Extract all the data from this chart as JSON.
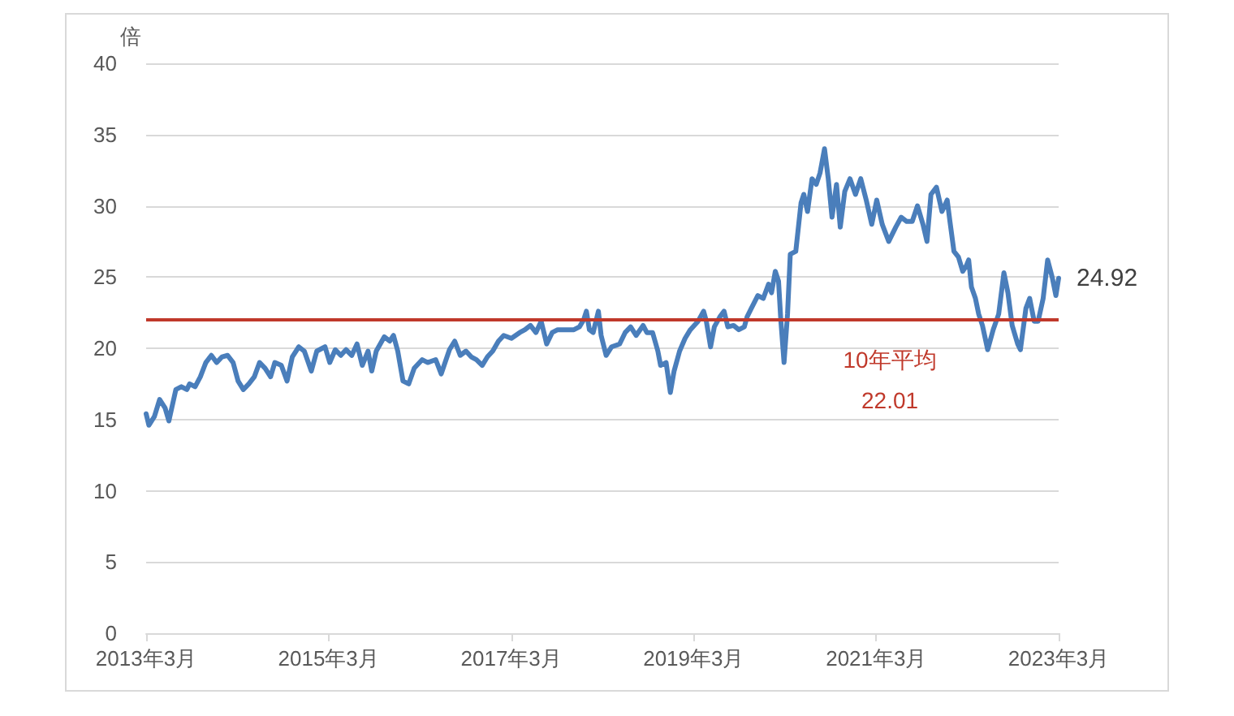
{
  "chart_data": {
    "type": "line",
    "ylabel": "倍",
    "x": [
      "2013-03-01",
      "2013-03-12",
      "2013-04-03",
      "2013-04-24",
      "2013-05-16",
      "2013-05-31",
      "2013-06-28",
      "2013-07-20",
      "2013-08-11",
      "2013-08-22",
      "2013-09-13",
      "2013-10-04",
      "2013-10-26",
      "2013-11-17",
      "2013-12-08",
      "2013-12-30",
      "2014-01-21",
      "2014-02-12",
      "2014-03-04",
      "2014-03-25",
      "2014-04-16",
      "2014-05-08",
      "2014-05-29",
      "2014-06-20",
      "2014-07-12",
      "2014-07-29",
      "2014-08-24",
      "2014-09-16",
      "2014-10-07",
      "2014-11-02",
      "2014-11-24",
      "2014-12-22",
      "2015-01-13",
      "2015-02-15",
      "2015-03-06",
      "2015-03-28",
      "2015-04-19",
      "2015-05-10",
      "2015-06-02",
      "2015-06-23",
      "2015-07-14",
      "2015-08-06",
      "2015-08-21",
      "2015-09-08",
      "2015-10-10",
      "2015-11-01",
      "2015-11-16",
      "2015-12-03",
      "2015-12-24",
      "2016-01-16",
      "2016-02-07",
      "2016-03-10",
      "2016-04-01",
      "2016-05-03",
      "2016-05-25",
      "2016-06-27",
      "2016-07-18",
      "2016-08-09",
      "2016-09-01",
      "2016-09-22",
      "2016-10-13",
      "2016-11-05",
      "2016-11-26",
      "2016-12-17",
      "2017-01-09",
      "2017-01-30",
      "2017-03-02",
      "2017-04-04",
      "2017-04-25",
      "2017-05-17",
      "2017-06-08",
      "2017-06-29",
      "2017-07-21",
      "2017-08-12",
      "2017-09-03",
      "2017-10-05",
      "2017-11-07",
      "2017-11-29",
      "2017-12-16",
      "2017-12-27",
      "2018-01-08",
      "2018-01-23",
      "2018-02-13",
      "2018-02-24",
      "2018-03-16",
      "2018-04-07",
      "2018-05-09",
      "2018-05-31",
      "2018-06-22",
      "2018-07-14",
      "2018-08-11",
      "2018-08-26",
      "2018-09-18",
      "2018-10-09",
      "2018-10-20",
      "2018-11-11",
      "2018-11-28",
      "2018-12-13",
      "2019-01-04",
      "2019-01-26",
      "2019-02-16",
      "2019-03-19",
      "2019-04-10",
      "2019-04-21",
      "2019-05-08",
      "2019-05-23",
      "2019-06-14",
      "2019-07-01",
      "2019-07-16",
      "2019-08-08",
      "2019-08-29",
      "2019-09-20",
      "2019-10-01",
      "2019-10-18",
      "2019-11-13",
      "2019-12-05",
      "2019-12-26",
      "2020-01-07",
      "2020-01-22",
      "2020-02-04",
      "2020-02-13",
      "2020-02-26",
      "2020-03-11",
      "2020-03-22",
      "2020-04-13",
      "2020-05-04",
      "2020-05-15",
      "2020-05-30",
      "2020-06-17",
      "2020-07-04",
      "2020-07-19",
      "2020-08-06",
      "2020-08-21",
      "2020-09-05",
      "2020-09-23",
      "2020-10-08",
      "2020-10-26",
      "2020-11-16",
      "2020-12-08",
      "2020-12-29",
      "2021-01-20",
      "2021-02-11",
      "2021-03-03",
      "2021-03-25",
      "2021-04-20",
      "2021-05-18",
      "2021-06-09",
      "2021-07-01",
      "2021-07-23",
      "2021-08-13",
      "2021-09-04",
      "2021-09-20",
      "2021-10-06",
      "2021-10-28",
      "2021-11-19",
      "2021-12-10",
      "2021-12-21",
      "2022-01-06",
      "2022-01-24",
      "2022-02-10",
      "2022-02-25",
      "2022-03-06",
      "2022-03-17",
      "2022-04-02",
      "2022-04-15",
      "2022-04-30",
      "2022-05-21",
      "2022-06-12",
      "2022-07-04",
      "2022-07-25",
      "2022-08-10",
      "2022-08-27",
      "2022-09-18",
      "2022-09-29",
      "2022-10-21",
      "2022-11-05",
      "2022-11-23",
      "2022-12-09",
      "2022-12-29",
      "2023-01-16",
      "2023-02-03",
      "2023-02-18",
      "2023-03-01"
    ],
    "series": [
      {
        "color": "#4a7ebb",
        "values": [
          15.4,
          14.6,
          15.2,
          16.4,
          15.8,
          14.9,
          17.1,
          17.3,
          17.1,
          17.5,
          17.3,
          18.0,
          19.0,
          19.5,
          19.0,
          19.4,
          19.5,
          19.0,
          17.7,
          17.1,
          17.5,
          18.0,
          19.0,
          18.6,
          18.0,
          19.0,
          18.8,
          17.7,
          19.4,
          20.1,
          19.8,
          18.4,
          19.8,
          20.1,
          19.0,
          19.9,
          19.5,
          19.9,
          19.5,
          20.3,
          18.8,
          19.8,
          18.4,
          19.8,
          20.8,
          20.5,
          20.9,
          19.8,
          17.7,
          17.5,
          18.6,
          19.2,
          19.0,
          19.2,
          18.2,
          19.9,
          20.5,
          19.5,
          19.8,
          19.4,
          19.2,
          18.8,
          19.4,
          19.8,
          20.5,
          20.9,
          20.7,
          21.1,
          21.3,
          21.6,
          21.1,
          21.9,
          20.3,
          21.1,
          21.3,
          21.3,
          21.3,
          21.5,
          22.0,
          22.6,
          21.3,
          21.1,
          22.6,
          20.9,
          19.5,
          20.1,
          20.3,
          21.1,
          21.5,
          20.9,
          21.6,
          21.1,
          21.1,
          19.8,
          18.8,
          19.0,
          16.9,
          18.4,
          19.8,
          20.7,
          21.3,
          21.9,
          22.6,
          21.9,
          20.1,
          21.5,
          22.2,
          22.6,
          21.5,
          21.6,
          21.3,
          21.5,
          22.2,
          22.8,
          23.7,
          23.5,
          24.5,
          23.9,
          25.4,
          24.7,
          22.0,
          19.0,
          22.4,
          26.6,
          26.8,
          30.2,
          30.8,
          29.6,
          31.9,
          31.5,
          32.3,
          34.0,
          31.9,
          29.2,
          31.5,
          28.5,
          31.0,
          31.9,
          30.8,
          31.9,
          30.4,
          28.7,
          30.4,
          28.7,
          27.5,
          28.5,
          29.2,
          28.9,
          28.9,
          30.0,
          28.7,
          27.5,
          30.8,
          31.3,
          29.6,
          30.4,
          28.9,
          26.8,
          26.4,
          25.4,
          25.8,
          26.2,
          24.3,
          23.5,
          22.4,
          21.6,
          19.9,
          21.3,
          22.4,
          25.3,
          23.9,
          21.6,
          20.3,
          19.9,
          22.8,
          23.5,
          21.9,
          21.9,
          23.5,
          26.2,
          25.0,
          23.7,
          24.92
        ]
      }
    ],
    "xlim": [
      "2013-03-01",
      "2023-03-01"
    ],
    "xticks": [
      {
        "value": "2013-03-01",
        "label": "2013年3月"
      },
      {
        "value": "2015-03-01",
        "label": "2015年3月"
      },
      {
        "value": "2017-03-01",
        "label": "2017年3月"
      },
      {
        "value": "2019-03-01",
        "label": "2019年3月"
      },
      {
        "value": "2021-03-01",
        "label": "2021年3月"
      },
      {
        "value": "2023-03-01",
        "label": "2023年3月"
      }
    ],
    "ylim": [
      0,
      40
    ],
    "yticks": [
      0,
      5,
      10,
      15,
      20,
      25,
      30,
      35,
      40
    ],
    "grid": "y",
    "ref_lines": [
      {
        "axis": "y",
        "value": 22.01,
        "label": "10年平均\n22.01",
        "color": "#c0392b"
      }
    ],
    "annotations": [
      {
        "text": "24.92",
        "x": "2023-03-01",
        "y": 24.92
      }
    ]
  }
}
